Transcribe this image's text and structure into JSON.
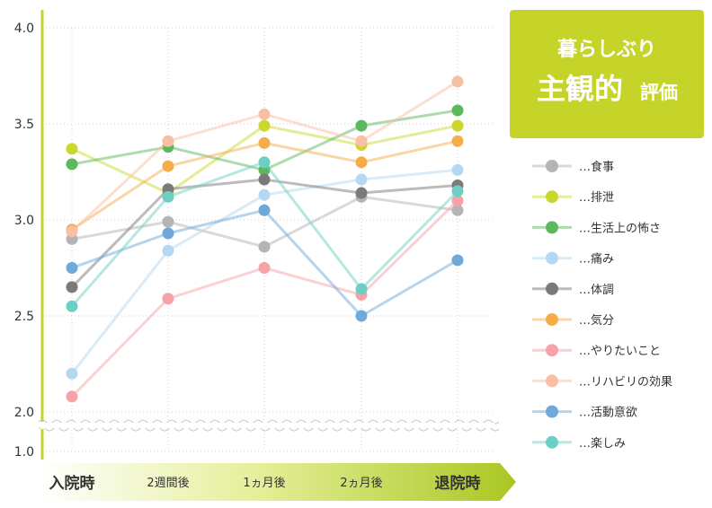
{
  "chart_data": {
    "type": "line",
    "title_lines": [
      "暮らしぶり",
      "主観的",
      "評価"
    ],
    "x": [
      "入院時",
      "2週間後",
      "1ヵ月後",
      "2ヵ月後",
      "退院時"
    ],
    "y_ticks": [
      "4.0",
      "3.5",
      "3.0",
      "2.5",
      "2.0",
      "1.0"
    ],
    "ylim": [
      1.0,
      4.0
    ],
    "axis_break": [
      1.0,
      2.0
    ],
    "grid": true,
    "legend_position": "right",
    "series": [
      {
        "name": "…食事",
        "color": "#b4b4b4",
        "values": [
          2.9,
          2.99,
          2.86,
          3.12,
          3.05
        ]
      },
      {
        "name": "…排泄",
        "color": "#cbd72d",
        "values": [
          3.37,
          3.14,
          3.49,
          3.39,
          3.49
        ]
      },
      {
        "name": "…生活上の怖さ",
        "color": "#5cb85c",
        "values": [
          3.29,
          3.38,
          3.26,
          3.49,
          3.57
        ]
      },
      {
        "name": "…痛み",
        "color": "#b5d8f2",
        "values": [
          2.2,
          2.84,
          3.13,
          3.21,
          3.26
        ]
      },
      {
        "name": "…体調",
        "color": "#7a7a7a",
        "values": [
          2.65,
          3.16,
          3.21,
          3.14,
          3.18
        ]
      },
      {
        "name": "…気分",
        "color": "#f5ad4a",
        "values": [
          2.95,
          3.28,
          3.4,
          3.3,
          3.41
        ]
      },
      {
        "name": "…やりたいこと",
        "color": "#f5a3a8",
        "values": [
          2.08,
          2.59,
          2.75,
          2.61,
          3.1
        ]
      },
      {
        "name": "…リハビリの効果",
        "color": "#f9bfa3",
        "values": [
          2.94,
          3.41,
          3.55,
          3.41,
          3.72
        ]
      },
      {
        "name": "…活動意欲",
        "color": "#6ea9d9",
        "values": [
          2.75,
          2.93,
          3.05,
          2.5,
          2.79
        ]
      },
      {
        "name": "…楽しみ",
        "color": "#6dcfc4",
        "values": [
          2.55,
          3.12,
          3.3,
          2.64,
          3.15
        ]
      }
    ]
  },
  "colors": {
    "accent": "#c6d42a",
    "axis": "#c6d42a",
    "grid": "#d0d0d0"
  }
}
